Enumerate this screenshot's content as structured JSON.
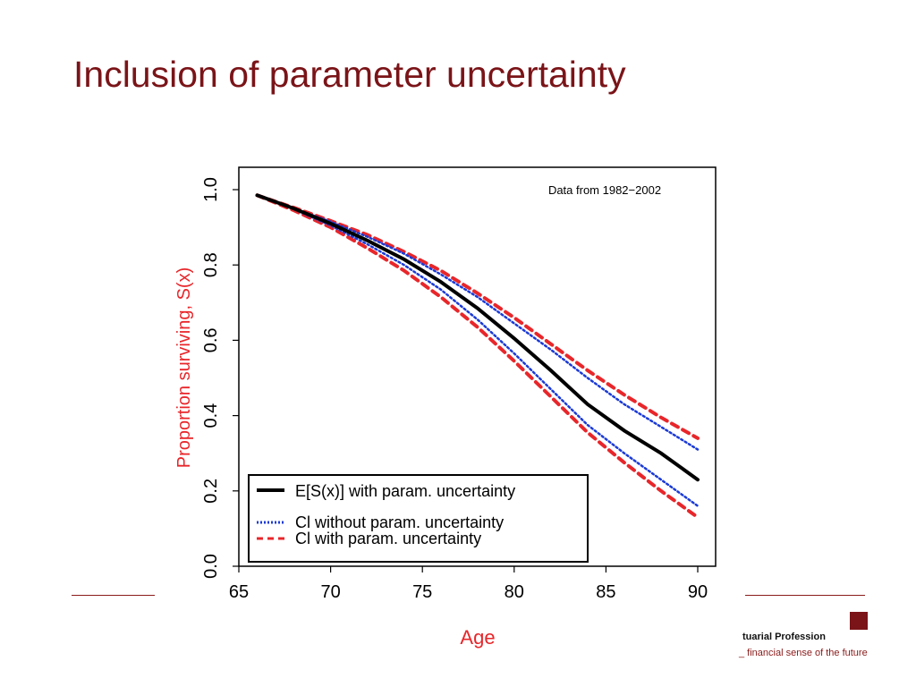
{
  "slide": {
    "title": "Inclusion of parameter uncertainty"
  },
  "footer": {
    "org_name": "tuarial Profession",
    "tagline": "_ financial sense of the future"
  },
  "colors": {
    "title": "#7a1418",
    "axis_label": "#e8262a",
    "mean_line": "#000000",
    "ci_without": "#1a3ad6",
    "ci_with": "#e8262a"
  },
  "chart_data": {
    "type": "line",
    "title": "",
    "annotation": "Data from 1982−2002",
    "xlabel": "Age",
    "ylabel": "Proportion surviving, S(x)",
    "xlim": [
      65,
      90
    ],
    "ylim": [
      0.0,
      1.0
    ],
    "x_ticks": [
      "65",
      "70",
      "75",
      "80",
      "85",
      "90"
    ],
    "y_ticks": [
      "0.0",
      "0.2",
      "0.4",
      "0.6",
      "0.8",
      "1.0"
    ],
    "grid": false,
    "legend_position": "bottom-left",
    "x": [
      66,
      68,
      70,
      72,
      74,
      76,
      78,
      80,
      82,
      84,
      86,
      88,
      90
    ],
    "series": [
      {
        "name": "E[S(x)] with param. uncertainty",
        "style": "solid",
        "color": "#000000",
        "values": [
          0.985,
          0.95,
          0.91,
          0.865,
          0.815,
          0.755,
          0.685,
          0.605,
          0.52,
          0.43,
          0.36,
          0.3,
          0.23
        ]
      },
      {
        "name": "CI without param. uncertainty",
        "legend_label": "Cl without param. uncertainty",
        "style": "dotted",
        "color": "#1a3ad6",
        "values_upper": [
          0.985,
          0.95,
          0.915,
          0.875,
          0.83,
          0.775,
          0.715,
          0.645,
          0.575,
          0.5,
          0.43,
          0.37,
          0.31
        ],
        "values_lower": [
          0.985,
          0.948,
          0.905,
          0.855,
          0.8,
          0.735,
          0.655,
          0.565,
          0.47,
          0.375,
          0.3,
          0.23,
          0.16
        ]
      },
      {
        "name": "CI with param. uncertainty",
        "legend_label": "Cl with param. uncertainty",
        "style": "dashed",
        "color": "#e8262a",
        "values_upper": [
          0.985,
          0.952,
          0.917,
          0.88,
          0.835,
          0.785,
          0.725,
          0.66,
          0.59,
          0.52,
          0.455,
          0.395,
          0.34
        ],
        "values_lower": [
          0.985,
          0.945,
          0.9,
          0.845,
          0.785,
          0.715,
          0.635,
          0.545,
          0.45,
          0.355,
          0.275,
          0.2,
          0.13
        ]
      }
    ]
  }
}
